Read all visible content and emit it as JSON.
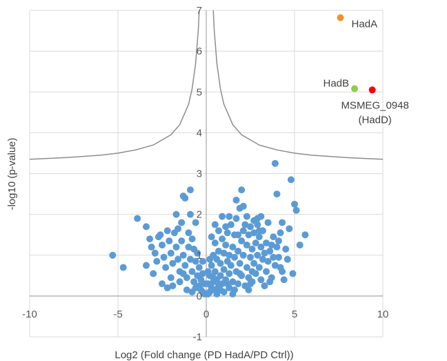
{
  "chart_data": {
    "type": "scatter",
    "xlabel": "Log2  (Fold change (PD HadA/PD Ctrl))",
    "ylabel": "-log10 (p-value)",
    "xlim": [
      -10,
      10
    ],
    "ylim": [
      -1,
      7
    ],
    "x_ticks": [
      -10,
      -5,
      0,
      5,
      10
    ],
    "y_ticks": [
      -1,
      0,
      1,
      2,
      3,
      4,
      5,
      6,
      7
    ],
    "grid": "vertical and horizontal gridlines",
    "colors": {
      "points": "#5b9bd5",
      "HadA": "#ed9430",
      "HadB": "#8fce4a",
      "MSMEG_0948": "#ff0000",
      "curve": "#8c8c8c",
      "grid": "#d9d9d9"
    },
    "threshold_curve": {
      "form": "y = 3.2 + 1.5/|x|",
      "points": [
        [
          -10,
          3.35
        ],
        [
          -8,
          3.39
        ],
        [
          -6,
          3.45
        ],
        [
          -5,
          3.5
        ],
        [
          -4,
          3.58
        ],
        [
          -3,
          3.7
        ],
        [
          -2,
          3.95
        ],
        [
          -1.5,
          4.2
        ],
        [
          -1,
          4.7
        ],
        [
          -0.8,
          5.08
        ],
        [
          -0.6,
          5.7
        ],
        [
          -0.45,
          6.53
        ],
        [
          -0.4,
          7.0
        ]
      ]
    },
    "highlighted_points": [
      {
        "label": "HadA",
        "x": 7.6,
        "y": 6.82
      },
      {
        "label": "HadB",
        "x": 8.4,
        "y": 5.08
      },
      {
        "label": "MSMEG_0948",
        "label2": "(HadD)",
        "x": 9.4,
        "y": 5.05
      }
    ],
    "points": [
      [
        -5.3,
        1.0
      ],
      [
        -4.7,
        0.7
      ],
      [
        -3.9,
        1.9
      ],
      [
        -3.4,
        1.7
      ],
      [
        -3.2,
        1.4
      ],
      [
        -3.1,
        1.2
      ],
      [
        -3.0,
        0.55
      ],
      [
        -2.9,
        1.05
      ],
      [
        -2.8,
        0.85
      ],
      [
        -2.6,
        1.5
      ],
      [
        -2.5,
        1.25
      ],
      [
        -2.4,
        0.95
      ],
      [
        -2.3,
        0.7
      ],
      [
        -2.2,
        1.6
      ],
      [
        -2.1,
        1.35
      ],
      [
        -2.0,
        1.05
      ],
      [
        -2.0,
        0.45
      ],
      [
        -1.9,
        0.8
      ],
      [
        -1.8,
        1.55
      ],
      [
        -1.7,
        1.2
      ],
      [
        -1.7,
        2.0
      ],
      [
        -1.6,
        0.9
      ],
      [
        -1.5,
        0.6
      ],
      [
        -1.4,
        1.8
      ],
      [
        -1.4,
        1.35
      ],
      [
        -1.3,
        2.45
      ],
      [
        -1.3,
        1.0
      ],
      [
        -1.2,
        0.75
      ],
      [
        -1.2,
        2.4
      ],
      [
        -1.1,
        0.45
      ],
      [
        -1.0,
        1.55
      ],
      [
        -1.0,
        1.2
      ],
      [
        -0.9,
        2.6
      ],
      [
        -0.9,
        0.9
      ],
      [
        -0.9,
        2.0
      ],
      [
        -0.8,
        0.6
      ],
      [
        -0.8,
        1.4
      ],
      [
        -0.7,
        1.15
      ],
      [
        -0.7,
        0.35
      ],
      [
        -0.6,
        0.85
      ],
      [
        -0.6,
        1.8
      ],
      [
        -0.5,
        0.5
      ],
      [
        -0.5,
        1.05
      ],
      [
        -0.4,
        0.25
      ],
      [
        -0.4,
        0.7
      ],
      [
        -0.3,
        0.4
      ],
      [
        -0.3,
        0.15
      ],
      [
        -0.2,
        0.55
      ],
      [
        -0.2,
        0.1
      ],
      [
        -0.1,
        0.05
      ],
      [
        -0.1,
        0.3
      ],
      [
        -2.5,
        0.3
      ],
      [
        -3.4,
        0.75
      ],
      [
        -1.9,
        0.25
      ],
      [
        -1.5,
        0.35
      ],
      [
        -1.1,
        0.15
      ],
      [
        -0.8,
        0.1
      ],
      [
        -0.6,
        0.2
      ],
      [
        -2.2,
        0.2
      ],
      [
        -1.3,
        0.55
      ],
      [
        -0.2,
        0.85
      ],
      [
        -1.6,
        1.65
      ],
      [
        -2.7,
        1.45
      ],
      [
        0.1,
        0.05
      ],
      [
        0.1,
        0.3
      ],
      [
        0.2,
        0.1
      ],
      [
        0.2,
        0.5
      ],
      [
        0.3,
        0.2
      ],
      [
        0.3,
        0.75
      ],
      [
        0.4,
        0.35
      ],
      [
        0.4,
        1.0
      ],
      [
        0.5,
        0.15
      ],
      [
        0.5,
        0.6
      ],
      [
        0.5,
        1.3
      ],
      [
        0.6,
        0.4
      ],
      [
        0.6,
        0.9
      ],
      [
        0.7,
        0.25
      ],
      [
        0.7,
        1.1
      ],
      [
        0.7,
        1.6
      ],
      [
        0.8,
        0.5
      ],
      [
        0.8,
        0.8
      ],
      [
        0.9,
        0.3
      ],
      [
        0.9,
        1.4
      ],
      [
        0.9,
        1.95
      ],
      [
        1.0,
        0.65
      ],
      [
        1.0,
        1.05
      ],
      [
        1.1,
        0.4
      ],
      [
        1.1,
        1.25
      ],
      [
        1.2,
        0.85
      ],
      [
        1.2,
        1.55
      ],
      [
        1.3,
        0.2
      ],
      [
        1.3,
        0.55
      ],
      [
        1.3,
        1.0
      ],
      [
        1.4,
        1.75
      ],
      [
        1.4,
        0.75
      ],
      [
        1.5,
        1.2
      ],
      [
        1.5,
        0.35
      ],
      [
        1.6,
        0.95
      ],
      [
        1.6,
        1.5
      ],
      [
        1.7,
        0.6
      ],
      [
        1.7,
        1.9
      ],
      [
        1.8,
        1.1
      ],
      [
        1.8,
        0.3
      ],
      [
        1.9,
        2.15
      ],
      [
        1.9,
        0.8
      ],
      [
        2.0,
        1.35
      ],
      [
        2.0,
        0.5
      ],
      [
        2.1,
        1.6
      ],
      [
        2.1,
        1.0
      ],
      [
        2.2,
        0.25
      ],
      [
        2.2,
        1.75
      ],
      [
        2.3,
        0.7
      ],
      [
        2.3,
        1.25
      ],
      [
        2.4,
        1.5
      ],
      [
        2.4,
        0.45
      ],
      [
        2.5,
        0.95
      ],
      [
        2.5,
        1.7
      ],
      [
        2.6,
        1.15
      ],
      [
        2.6,
        0.35
      ],
      [
        2.7,
        1.55
      ],
      [
        2.7,
        0.8
      ],
      [
        2.8,
        1.3
      ],
      [
        2.8,
        0.55
      ],
      [
        2.9,
        1.75
      ],
      [
        2.9,
        1.0
      ],
      [
        3.0,
        0.7
      ],
      [
        3.0,
        1.45
      ],
      [
        3.1,
        1.2
      ],
      [
        3.1,
        0.4
      ],
      [
        3.2,
        1.6
      ],
      [
        3.2,
        0.9
      ],
      [
        3.3,
        1.05
      ],
      [
        3.4,
        1.3
      ],
      [
        3.4,
        0.6
      ],
      [
        3.5,
        1.8
      ],
      [
        3.5,
        0.85
      ],
      [
        3.6,
        1.1
      ],
      [
        3.7,
        0.45
      ],
      [
        3.8,
        1.45
      ],
      [
        3.9,
        0.75
      ],
      [
        4.0,
        1.2
      ],
      [
        4.1,
        0.95
      ],
      [
        4.2,
        1.55
      ],
      [
        4.3,
        0.6
      ],
      [
        2.0,
        2.6
      ],
      [
        2.1,
        2.2
      ],
      [
        1.7,
        2.35
      ],
      [
        1.3,
        1.95
      ],
      [
        3.1,
        1.95
      ],
      [
        3.0,
        1.6
      ],
      [
        2.9,
        1.9
      ],
      [
        3.9,
        3.25
      ],
      [
        4.8,
        2.85
      ],
      [
        4.0,
        2.5
      ],
      [
        5.0,
        2.25
      ],
      [
        5.1,
        2.1
      ],
      [
        5.6,
        1.5
      ],
      [
        5.3,
        1.25
      ],
      [
        4.7,
        1.65
      ],
      [
        4.3,
        1.8
      ],
      [
        4.1,
        1.35
      ],
      [
        4.5,
        1.15
      ],
      [
        4.6,
        0.9
      ],
      [
        4.9,
        0.55
      ],
      [
        4.2,
        0.7
      ],
      [
        4.4,
        0.4
      ],
      [
        3.6,
        0.35
      ],
      [
        3.3,
        0.25
      ],
      [
        2.4,
        0.15
      ],
      [
        1.6,
        0.15
      ],
      [
        1.0,
        0.1
      ],
      [
        0.6,
        0.05
      ],
      [
        0.4,
        0.45
      ],
      [
        0.3,
        1.45
      ],
      [
        0.2,
        0.9
      ],
      [
        0.1,
        0.6
      ],
      [
        1.5,
        0.05
      ],
      [
        2.5,
        0.3
      ],
      [
        1.2,
        0.3
      ],
      [
        0.8,
        0.15
      ],
      [
        1.9,
        0.55
      ],
      [
        2.6,
        0.6
      ],
      [
        3.7,
        1.25
      ],
      [
        3.8,
        0.95
      ],
      [
        1.1,
        1.7
      ],
      [
        2.3,
        1.95
      ],
      [
        2.7,
        1.85
      ],
      [
        1.8,
        1.5
      ],
      [
        0.5,
        1.75
      ]
    ]
  }
}
